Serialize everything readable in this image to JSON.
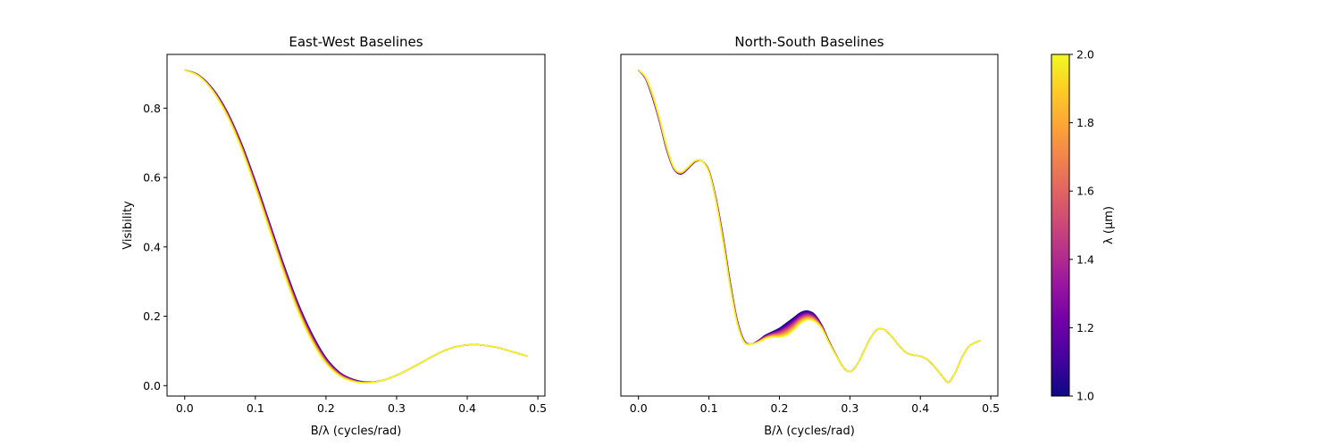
{
  "colormap": [
    "#0d0887",
    "#46039f",
    "#7201a8",
    "#9c179e",
    "#bd3786",
    "#d8576b",
    "#ed7953",
    "#fb9f3a",
    "#fdca26",
    "#f0f921"
  ],
  "colorbar": {
    "label": "λ (μm)",
    "range": [
      1.0,
      2.0
    ],
    "ticks": [
      1.0,
      1.2,
      1.4,
      1.6,
      1.8,
      2.0
    ],
    "tick_labels": [
      "1.0",
      "1.2",
      "1.4",
      "1.6",
      "1.8",
      "2.0"
    ]
  },
  "chart_data": [
    {
      "type": "line",
      "title": "East-West Baselines",
      "xlabel": "B/λ (cycles/rad)",
      "ylabel": "Visibility",
      "xlim": [
        -0.025,
        0.51
      ],
      "ylim": [
        -0.03,
        0.955
      ],
      "xticks": [
        0.0,
        0.1,
        0.2,
        0.3,
        0.4,
        0.5
      ],
      "xtick_labels": [
        "0.0",
        "0.1",
        "0.2",
        "0.3",
        "0.4",
        "0.5"
      ],
      "yticks": [
        0.0,
        0.2,
        0.4,
        0.6,
        0.8
      ],
      "ytick_labels": [
        "0.0",
        "0.2",
        "0.4",
        "0.6",
        "0.8"
      ],
      "wavelengths": [
        1.0,
        1.1,
        1.2,
        1.3,
        1.4,
        1.5,
        1.6,
        1.7,
        1.8,
        1.9,
        2.0
      ],
      "x": [
        0.0,
        0.02,
        0.04,
        0.06,
        0.08,
        0.1,
        0.12,
        0.14,
        0.16,
        0.18,
        0.2,
        0.22,
        0.24,
        0.26,
        0.28,
        0.3,
        0.32,
        0.34,
        0.36,
        0.38,
        0.4,
        0.42,
        0.44,
        0.46,
        0.485
      ],
      "y_short": [
        0.91,
        0.895,
        0.855,
        0.79,
        0.7,
        0.59,
        0.47,
        0.35,
        0.24,
        0.15,
        0.08,
        0.037,
        0.017,
        0.01,
        0.015,
        0.03,
        0.05,
        0.072,
        0.094,
        0.11,
        0.117,
        0.117,
        0.111,
        0.1,
        0.085
      ],
      "y_long": [
        0.91,
        0.892,
        0.848,
        0.778,
        0.684,
        0.57,
        0.448,
        0.326,
        0.216,
        0.128,
        0.064,
        0.027,
        0.011,
        0.008,
        0.015,
        0.03,
        0.05,
        0.072,
        0.094,
        0.11,
        0.117,
        0.117,
        0.111,
        0.1,
        0.085
      ],
      "converge_x": 0.28
    },
    {
      "type": "line",
      "title": "North-South Baselines",
      "xlabel": "B/λ (cycles/rad)",
      "ylabel": "",
      "xlim": [
        -0.025,
        0.51
      ],
      "ylim": [
        -0.03,
        0.955
      ],
      "xticks": [
        0.0,
        0.1,
        0.2,
        0.3,
        0.4,
        0.5
      ],
      "xtick_labels": [
        "0.0",
        "0.1",
        "0.2",
        "0.3",
        "0.4",
        "0.5"
      ],
      "yticks": [],
      "ytick_labels": [],
      "wavelengths": [
        1.0,
        1.1,
        1.2,
        1.3,
        1.4,
        1.5,
        1.6,
        1.7,
        1.8,
        1.9,
        2.0
      ],
      "x": [
        0.0,
        0.01,
        0.02,
        0.03,
        0.04,
        0.05,
        0.06,
        0.07,
        0.08,
        0.09,
        0.1,
        0.11,
        0.12,
        0.13,
        0.14,
        0.15,
        0.16,
        0.17,
        0.18,
        0.19,
        0.2,
        0.21,
        0.22,
        0.23,
        0.24,
        0.25,
        0.26,
        0.27,
        0.28,
        0.29,
        0.3,
        0.31,
        0.32,
        0.33,
        0.34,
        0.35,
        0.36,
        0.37,
        0.38,
        0.39,
        0.4,
        0.41,
        0.42,
        0.43,
        0.44,
        0.45,
        0.46,
        0.47,
        0.485
      ],
      "y_short": [
        0.91,
        0.885,
        0.83,
        0.76,
        0.68,
        0.625,
        0.61,
        0.625,
        0.645,
        0.648,
        0.62,
        0.54,
        0.43,
        0.3,
        0.19,
        0.13,
        0.12,
        0.13,
        0.145,
        0.155,
        0.165,
        0.18,
        0.195,
        0.21,
        0.215,
        0.205,
        0.175,
        0.13,
        0.09,
        0.055,
        0.04,
        0.06,
        0.1,
        0.14,
        0.163,
        0.16,
        0.14,
        0.115,
        0.095,
        0.088,
        0.085,
        0.075,
        0.055,
        0.03,
        0.01,
        0.04,
        0.085,
        0.115,
        0.13
      ],
      "y_long": [
        0.91,
        0.89,
        0.84,
        0.77,
        0.69,
        0.63,
        0.615,
        0.63,
        0.648,
        0.648,
        0.615,
        0.53,
        0.415,
        0.285,
        0.18,
        0.125,
        0.12,
        0.125,
        0.135,
        0.14,
        0.14,
        0.145,
        0.16,
        0.18,
        0.19,
        0.185,
        0.165,
        0.125,
        0.088,
        0.055,
        0.04,
        0.06,
        0.1,
        0.14,
        0.163,
        0.16,
        0.14,
        0.115,
        0.095,
        0.088,
        0.085,
        0.075,
        0.055,
        0.03,
        0.01,
        0.04,
        0.085,
        0.115,
        0.13
      ],
      "converge_x": 0.29
    }
  ]
}
